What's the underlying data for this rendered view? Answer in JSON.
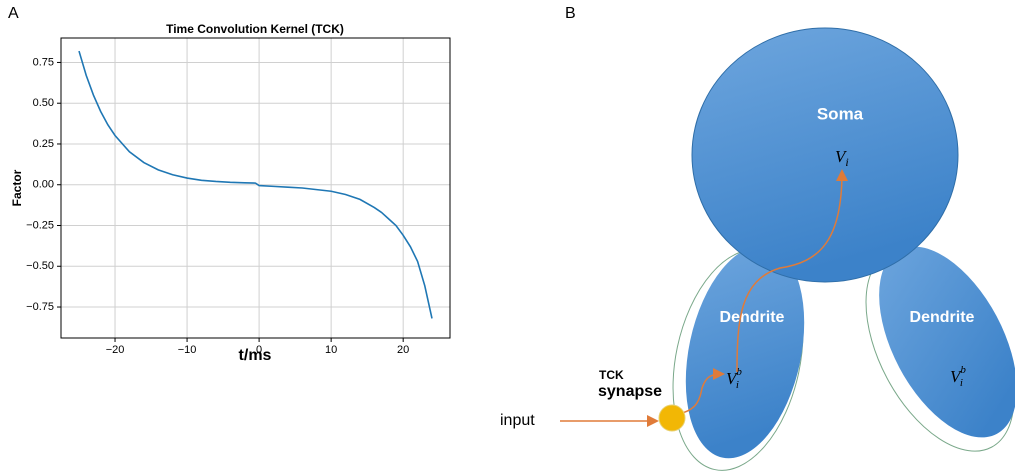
{
  "panels": [
    "A",
    "B"
  ],
  "chart_data": {
    "type": "line",
    "title": "Time Convolution Kernel (TCK)",
    "x_label": "t/ms",
    "y_label": "Factor",
    "x": [
      -25,
      -24,
      -23,
      -22,
      -21,
      -20,
      -18,
      -16,
      -14,
      -12,
      -10,
      -8,
      -6,
      -4,
      -2,
      -0.5,
      0,
      2,
      4,
      6,
      8,
      10,
      12,
      14,
      16,
      17,
      18,
      19,
      20,
      21,
      22,
      23,
      24
    ],
    "values": [
      0.82,
      0.671,
      0.55,
      0.45,
      0.368,
      0.302,
      0.202,
      0.136,
      0.091,
      0.061,
      0.041,
      0.027,
      0.02,
      0.015,
      0.012,
      0.01,
      -0.005,
      -0.01,
      -0.015,
      -0.02,
      -0.03,
      -0.04,
      -0.06,
      -0.09,
      -0.14,
      -0.17,
      -0.21,
      -0.25,
      -0.31,
      -0.38,
      -0.47,
      -0.62,
      -0.82
    ],
    "color": "#1f77b4",
    "xlim": [
      -27.5,
      26.5
    ],
    "ylim": [
      -0.94,
      0.9
    ],
    "xticks": [
      {
        "value": -20,
        "label": "−20"
      },
      {
        "value": -10,
        "label": "−10"
      },
      0,
      10,
      20
    ],
    "yticks": [
      {
        "value": -0.75,
        "label": "−0.75"
      },
      {
        "value": -0.5,
        "label": "−0.50"
      },
      {
        "value": -0.25,
        "label": "−0.25"
      },
      {
        "value": 0,
        "label": "0.00"
      },
      0.25,
      {
        "value": 0.5,
        "label": "0.50"
      },
      0.75
    ],
    "grid": true
  },
  "diagram": {
    "soma": "Soma",
    "soma_voltage": {
      "symbol": "V",
      "subscript": "i"
    },
    "dendrites": [
      {
        "label": "Dendrite",
        "voltage": {
          "symbol": "V",
          "subscript": "i",
          "superscript": "b"
        }
      },
      {
        "label": "Dendrite",
        "voltage": {
          "symbol": "V",
          "subscript": "i",
          "superscript": "b"
        }
      }
    ],
    "synapse_prefix": "TCK",
    "synapse": "synapse",
    "input": "input"
  }
}
